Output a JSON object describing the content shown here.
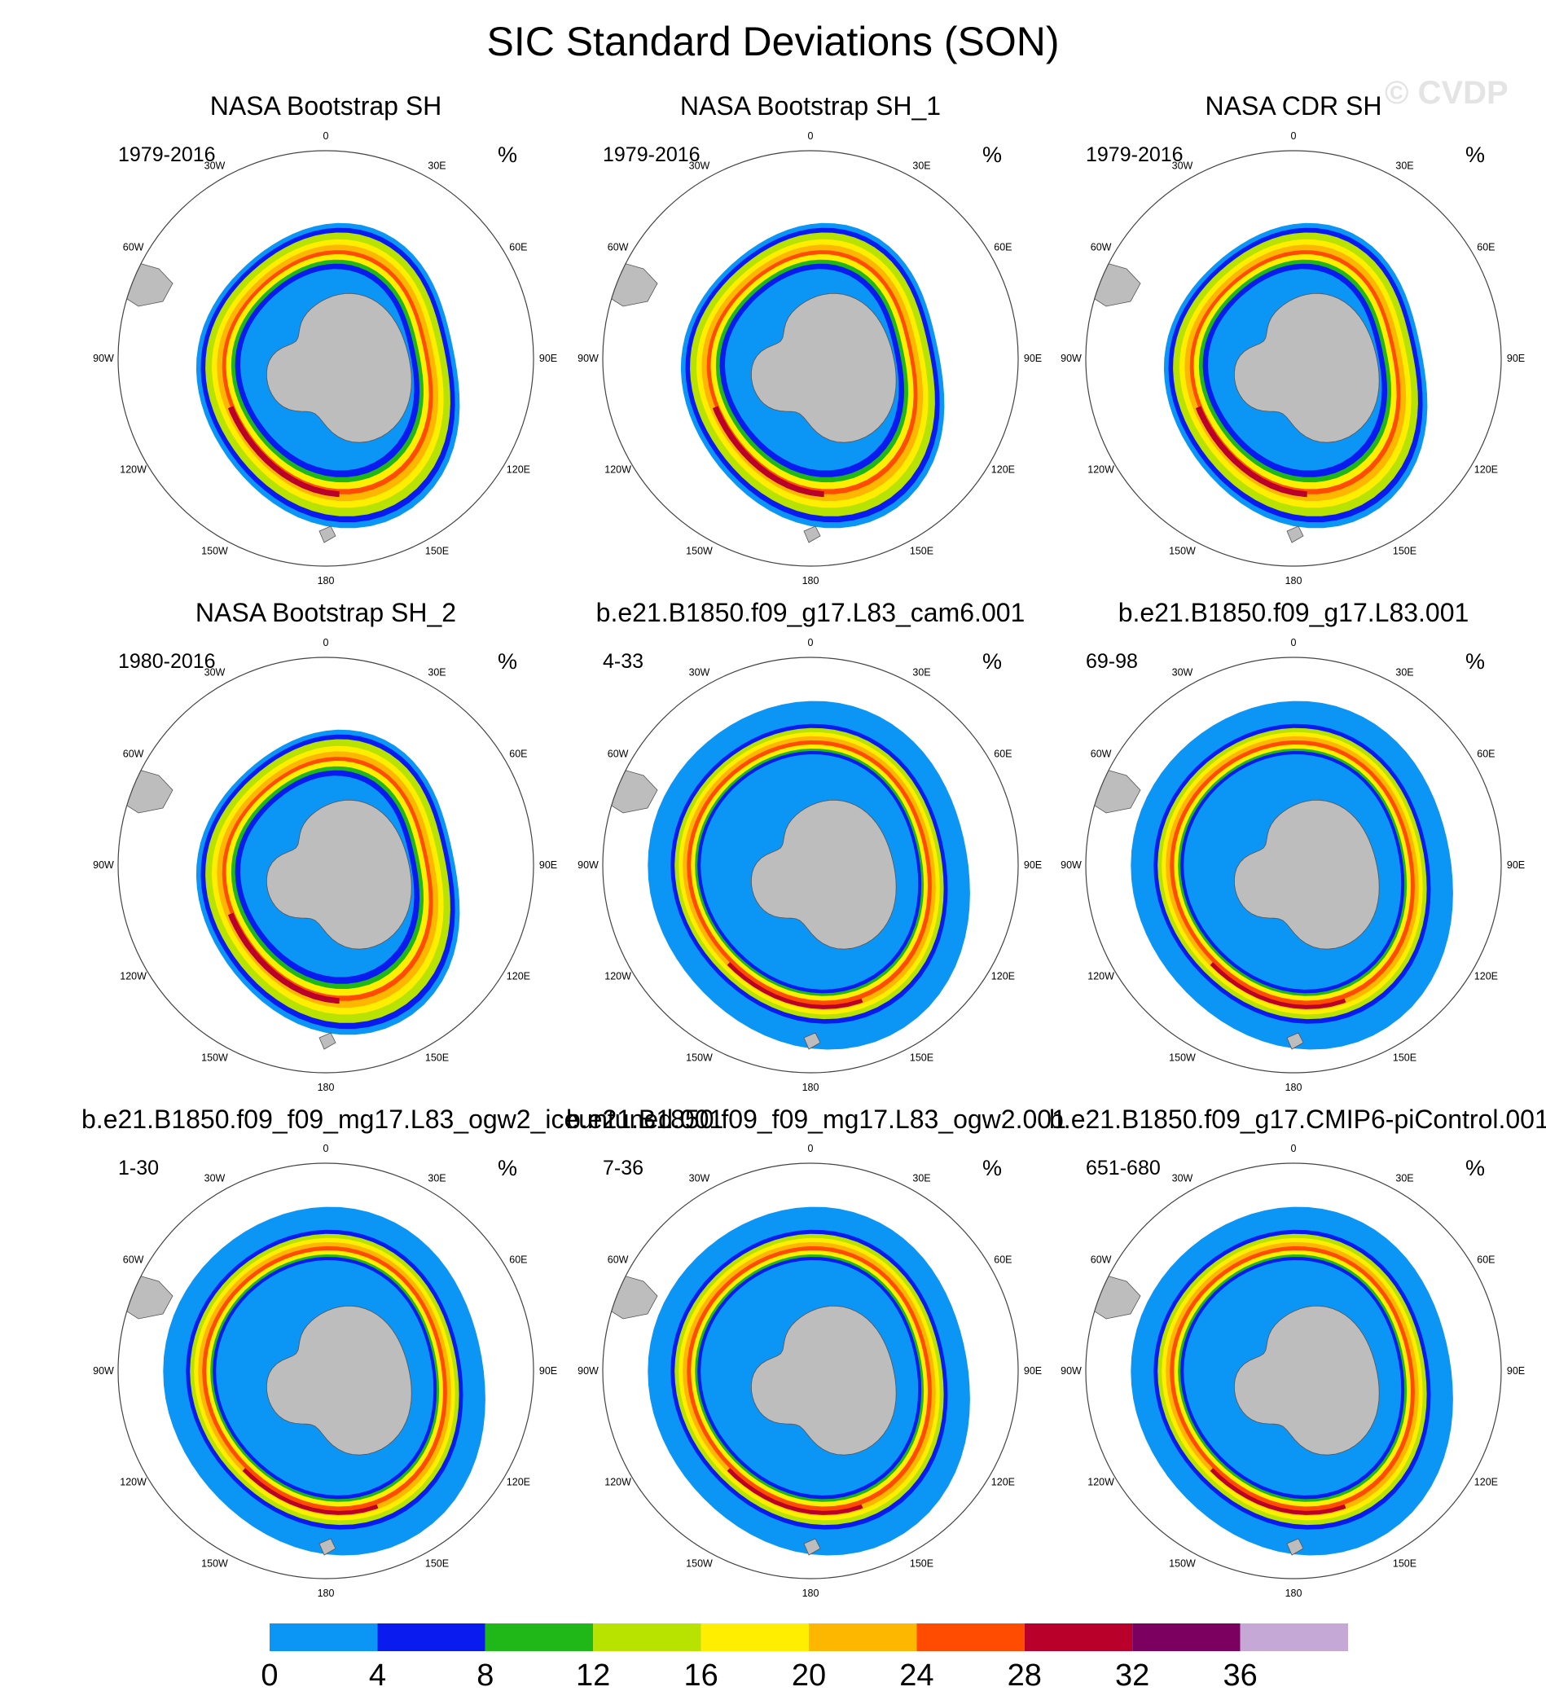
{
  "title": "SIC Standard Deviations (SON)",
  "watermark": "© CVDP",
  "units": "%",
  "longitude_labels": [
    "0",
    "30E",
    "60E",
    "90E",
    "120E",
    "150E",
    "180",
    "150W",
    "120W",
    "90W",
    "60W",
    "30W"
  ],
  "panels": [
    {
      "title": "NASA Bootstrap SH",
      "period": "1979-2016",
      "type": "obs"
    },
    {
      "title": "NASA Bootstrap SH_1",
      "period": "1979-2016",
      "type": "obs"
    },
    {
      "title": "NASA CDR SH",
      "period": "1979-2016",
      "type": "obs"
    },
    {
      "title": "NASA Bootstrap SH_2",
      "period": "1980-2016",
      "type": "obs"
    },
    {
      "title": "b.e21.B1850.f09_g17.L83_cam6.001",
      "period": "4-33",
      "type": "model"
    },
    {
      "title": "b.e21.B1850.f09_g17.L83.001",
      "period": "69-98",
      "type": "model"
    },
    {
      "title": "b.e21.B1850.f09_f09_mg17.L83_ogw2_iceuntuned.001",
      "period": "1-30",
      "type": "model"
    },
    {
      "title": "b.e21.B1850.f09_f09_mg17.L83_ogw2.001",
      "period": "7-36",
      "type": "model"
    },
    {
      "title": "b.e21.B1850.f09_g17.CMIP6-piControl.001",
      "period": "651-680",
      "type": "model"
    }
  ],
  "colorbar": {
    "labels": [
      "0",
      "4",
      "8",
      "12",
      "16",
      "20",
      "24",
      "28",
      "32",
      "36"
    ],
    "colors": [
      "#0b95f5",
      "#0a1bf0",
      "#20b818",
      "#b8e200",
      "#ffee00",
      "#fdb700",
      "#ff4c00",
      "#b8002a",
      "#7c0060",
      "#c6a8d6"
    ]
  },
  "land_color": "#bdbdbd"
}
